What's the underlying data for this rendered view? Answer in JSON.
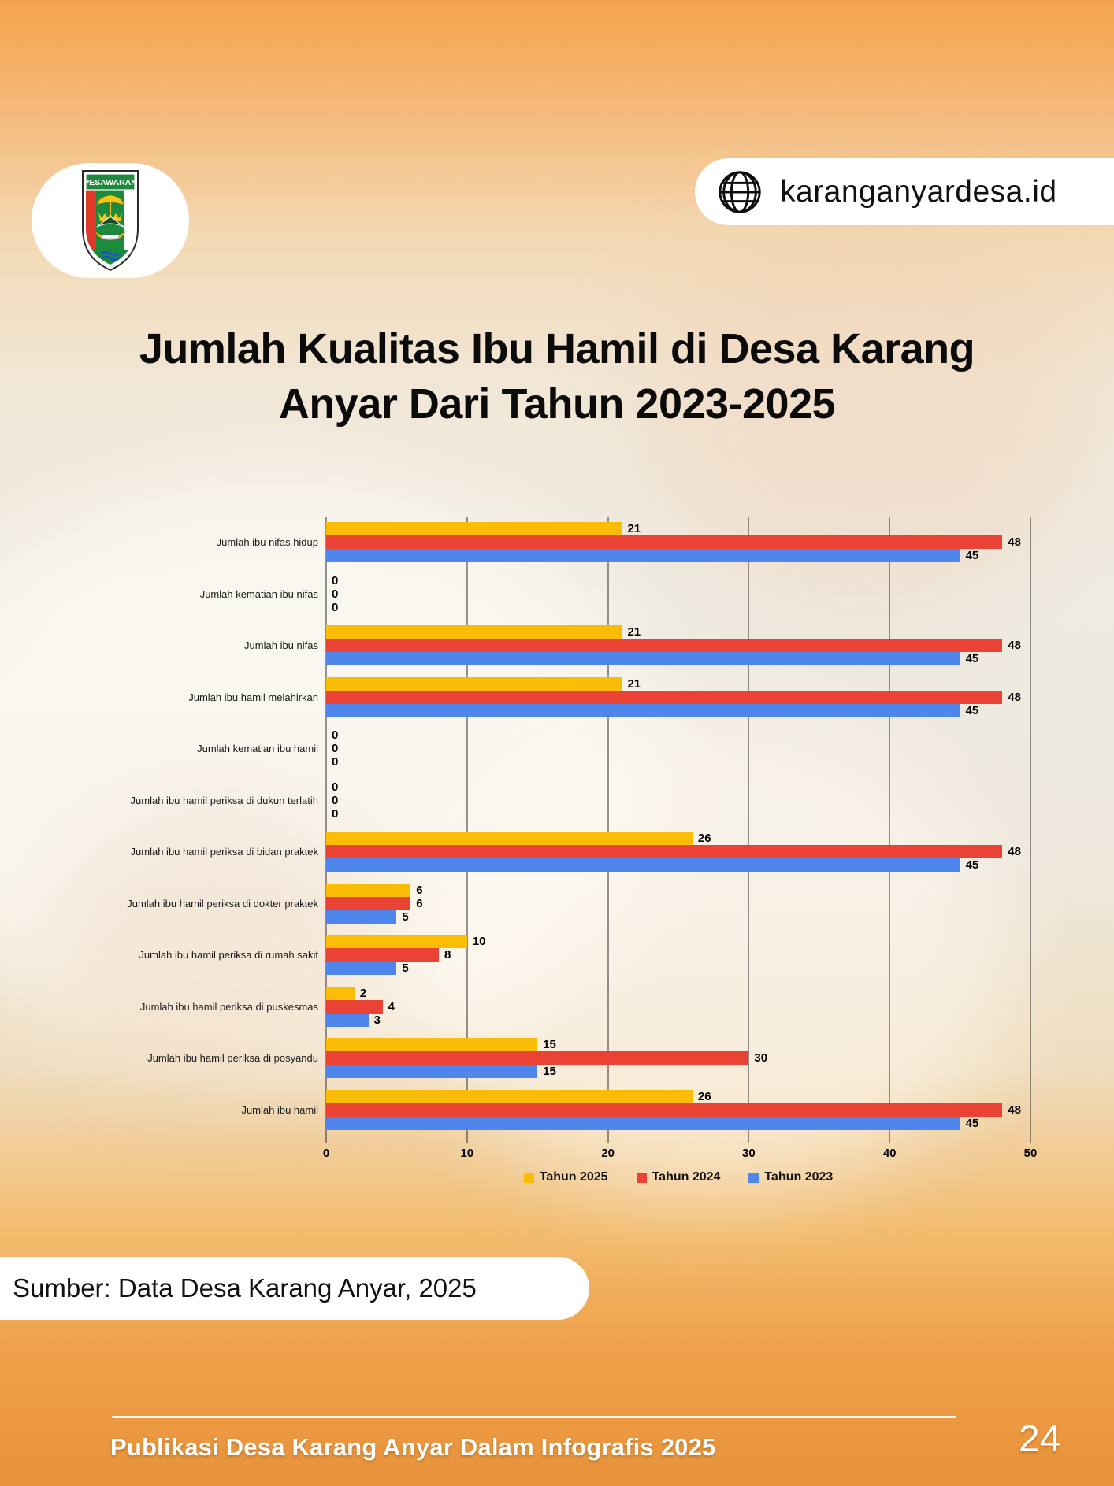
{
  "header": {
    "logo_badge": {
      "banner_text": "PESAWARAN"
    },
    "website_badge": {
      "icon": "globe-icon",
      "label": "karanganyardesa.id"
    }
  },
  "title": {
    "line1": "Jumlah Kualitas Ibu Hamil di Desa Karang",
    "line2": "Anyar Dari Tahun 2023-2025"
  },
  "chart_data": {
    "type": "bar",
    "orientation": "horizontal",
    "categories": [
      "Jumlah ibu nifas hidup",
      "Jumlah kematian ibu nifas",
      "Jumlah ibu nifas",
      "Jumlah ibu hamil melahirkan",
      "Jumlah kematian ibu hamil",
      "Jumlah ibu hamil periksa di dukun terlatih",
      "Jumlah ibu hamil periksa di bidan praktek",
      "Jumlah ibu hamil periksa di dokter praktek",
      "Jumlah ibu hamil periksa di rumah sakit",
      "Jumlah ibu hamil periksa di puskesmas",
      "Jumlah ibu hamil periksa di posyandu",
      "Jumlah ibu hamil"
    ],
    "series": [
      {
        "name": "Tahun 2025",
        "color": "#FBBC05",
        "values": [
          21,
          0,
          21,
          21,
          0,
          0,
          26,
          6,
          10,
          2,
          15,
          26
        ]
      },
      {
        "name": "Tahun 2024",
        "color": "#EA4335",
        "values": [
          48,
          0,
          48,
          48,
          0,
          0,
          48,
          6,
          8,
          4,
          30,
          48
        ]
      },
      {
        "name": "Tahun 2023",
        "color": "#4E86EC",
        "values": [
          45,
          0,
          45,
          45,
          0,
          0,
          45,
          5,
          5,
          3,
          15,
          45
        ]
      }
    ],
    "xlim": [
      0,
      50
    ],
    "x_ticks": [
      0,
      10,
      20,
      30,
      40,
      50
    ],
    "grid": true,
    "legend_position": "bottom"
  },
  "source": {
    "text": "Sumber: Data Desa Karang Anyar, 2025"
  },
  "footer": {
    "text": "Publikasi Desa Karang Anyar Dalam Infografis 2025",
    "page_number": "24"
  }
}
